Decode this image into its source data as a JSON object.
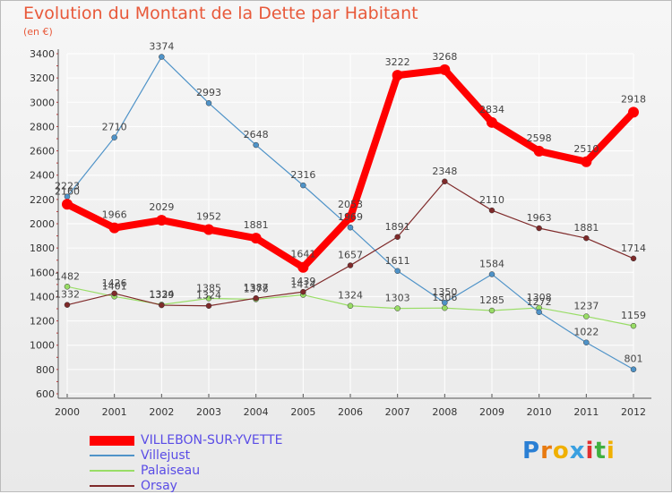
{
  "chart_data": {
    "type": "line",
    "title": "Evolution du Montant de la Dette par Habitant",
    "unit_label": "(en €)",
    "x": [
      "2000",
      "2001",
      "2002",
      "2003",
      "2004",
      "2005",
      "2006",
      "2007",
      "2008",
      "2009",
      "2010",
      "2011",
      "2012"
    ],
    "ylim": [
      600,
      3400
    ],
    "yticks": [
      600,
      800,
      1000,
      1200,
      1400,
      1600,
      1800,
      2000,
      2200,
      2400,
      2600,
      2800,
      3000,
      3200,
      3400
    ],
    "grid": true,
    "legend_position": "bottom-left",
    "series": [
      {
        "name": "VILLEBON-SUR-YVETTE",
        "color": "#ff0000",
        "values": [
          2160,
          1966,
          2029,
          1952,
          1881,
          1641,
          2053,
          3222,
          3268,
          2834,
          2598,
          2510,
          2918
        ]
      },
      {
        "name": "Villejust",
        "color": "#4f93c8",
        "values": [
          2223,
          2710,
          3374,
          2993,
          2648,
          2316,
          1969,
          1611,
          1350,
          1584,
          1272,
          1022,
          801
        ]
      },
      {
        "name": "Palaiseau",
        "color": "#99dd66",
        "values": [
          1482,
          1401,
          1334,
          1385,
          1378,
          1414,
          1324,
          1303,
          1306,
          1285,
          1308,
          1237,
          1159
        ]
      },
      {
        "name": "Orsay",
        "color": "#7f2a2a",
        "values": [
          1332,
          1426,
          1329,
          1324,
          1387,
          1439,
          1657,
          1891,
          2348,
          2110,
          1963,
          1881,
          1714
        ]
      }
    ]
  },
  "logo": {
    "letters": [
      "P",
      "r",
      "o",
      "x",
      "i",
      "t",
      "i"
    ],
    "colors": [
      "#2a7fd4",
      "#e87a10",
      "#f0b000",
      "#3aa0e0",
      "#e03030",
      "#40b040",
      "#f0b000"
    ]
  }
}
